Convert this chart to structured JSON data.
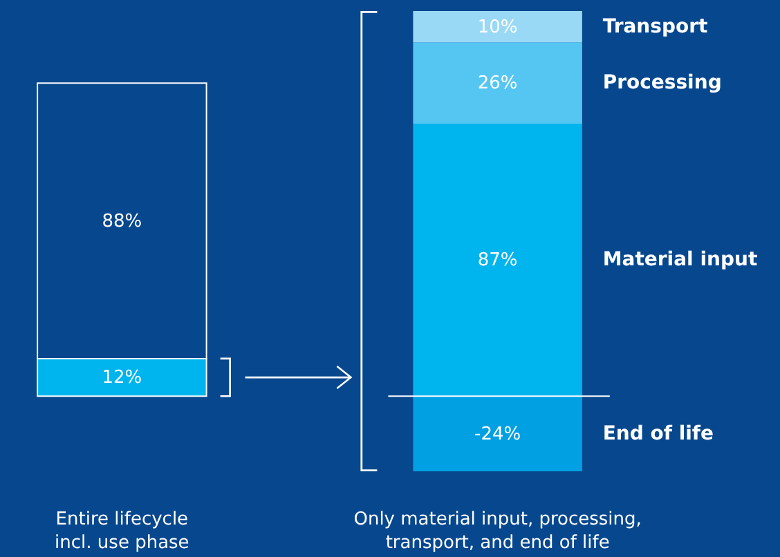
{
  "chart_data": {
    "type": "bar",
    "stacked": true,
    "tick_labels": false,
    "ylim": [
      -24,
      123
    ],
    "categories": [
      "Entire lifecycle incl. use phase",
      "Only material input, processing, transport, and end of life"
    ],
    "series": [
      {
        "color": "#00b4ee",
        "values": [
          12,
          null
        ],
        "value_labels": [
          "12%",
          null
        ]
      },
      {
        "color": "#07478e",
        "values": [
          88,
          null
        ],
        "value_labels": [
          "88%",
          null
        ]
      },
      {
        "name": "End of life",
        "color": "#00a0e2",
        "values": [
          null,
          -24
        ],
        "value_labels": [
          null,
          "-24%"
        ]
      },
      {
        "name": "Material input",
        "color": "#00b4ee",
        "values": [
          null,
          87
        ],
        "value_labels": [
          null,
          "87%"
        ]
      },
      {
        "name": "Processing",
        "color": "#55c6f1",
        "values": [
          null,
          26
        ],
        "value_labels": [
          null,
          "26%"
        ]
      },
      {
        "name": "Transport",
        "color": "#9ad9f5",
        "values": [
          null,
          10
        ],
        "value_labels": [
          null,
          "10%"
        ]
      }
    ],
    "ref_lines": [
      {
        "axis": "y",
        "value": 0,
        "color": "#ffffff"
      }
    ]
  }
}
